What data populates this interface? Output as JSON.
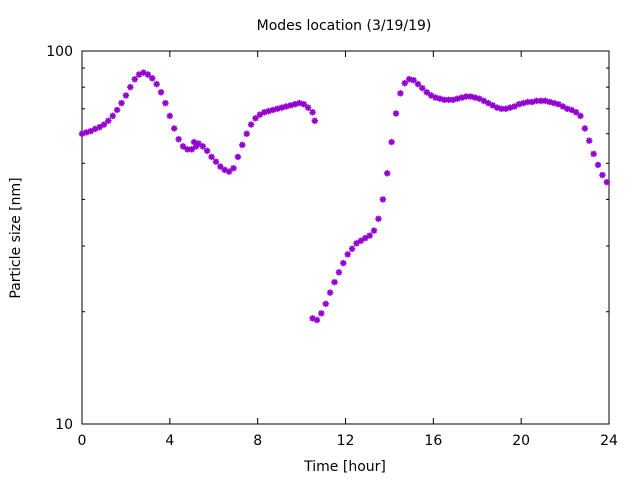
{
  "chart_data": {
    "type": "scatter",
    "title": "Modes location (3/19/19)",
    "xlabel": "Time [hour]",
    "ylabel": "Particle size [nm]",
    "xlim": [
      0,
      24
    ],
    "ylim": [
      10,
      100
    ],
    "yscale": "log",
    "grid": false,
    "x_ticks": [
      "0",
      "4",
      "8",
      "12",
      "16",
      "20",
      "24"
    ],
    "y_ticks": [
      "10",
      "100"
    ],
    "marker_color": "#9400d3",
    "marker": "star",
    "series": [
      {
        "points": [
          [
            0.0,
            60.0
          ],
          [
            0.2,
            60.5
          ],
          [
            0.4,
            61.0
          ],
          [
            0.6,
            61.8
          ],
          [
            0.8,
            62.5
          ],
          [
            1.0,
            63.5
          ],
          [
            1.2,
            65.0
          ],
          [
            1.4,
            67.0
          ],
          [
            1.6,
            69.5
          ],
          [
            1.8,
            72.5
          ],
          [
            2.0,
            76.0
          ],
          [
            2.2,
            80.0
          ],
          [
            2.4,
            84.0
          ],
          [
            2.6,
            86.5
          ],
          [
            2.8,
            87.5
          ],
          [
            3.0,
            86.5
          ],
          [
            3.2,
            84.5
          ],
          [
            3.4,
            81.5
          ],
          [
            3.6,
            77.5
          ],
          [
            3.8,
            72.5
          ],
          [
            4.0,
            67.0
          ],
          [
            4.2,
            62.0
          ],
          [
            4.4,
            58.0
          ],
          [
            4.6,
            55.5
          ],
          [
            4.8,
            54.5
          ],
          [
            5.0,
            54.5
          ],
          [
            5.2,
            55.5
          ],
          [
            5.1,
            57.0
          ],
          [
            5.3,
            56.5
          ],
          [
            5.5,
            55.5
          ],
          [
            5.7,
            54.0
          ],
          [
            5.9,
            52.0
          ],
          [
            6.1,
            50.5
          ],
          [
            6.3,
            49.0
          ],
          [
            6.5,
            48.0
          ],
          [
            6.7,
            47.5
          ],
          [
            6.9,
            48.5
          ],
          [
            7.1,
            52.0
          ],
          [
            7.3,
            56.0
          ],
          [
            7.5,
            60.0
          ],
          [
            7.7,
            63.5
          ],
          [
            7.9,
            66.0
          ],
          [
            8.1,
            67.5
          ],
          [
            8.3,
            68.5
          ],
          [
            8.5,
            69.0
          ],
          [
            8.7,
            69.5
          ],
          [
            8.9,
            70.0
          ],
          [
            9.1,
            70.5
          ],
          [
            9.3,
            71.0
          ],
          [
            9.5,
            71.5
          ],
          [
            9.7,
            72.0
          ],
          [
            9.9,
            72.5
          ],
          [
            10.1,
            72.0
          ],
          [
            10.3,
            70.5
          ],
          [
            10.5,
            68.5
          ],
          [
            10.6,
            65.0
          ],
          [
            10.5,
            19.2
          ],
          [
            10.7,
            19.0
          ],
          [
            10.9,
            19.8
          ],
          [
            11.1,
            21.0
          ],
          [
            11.3,
            22.5
          ],
          [
            11.5,
            24.0
          ],
          [
            11.7,
            25.5
          ],
          [
            11.9,
            27.0
          ],
          [
            12.1,
            28.5
          ],
          [
            12.3,
            29.5
          ],
          [
            12.5,
            30.5
          ],
          [
            12.7,
            31.0
          ],
          [
            12.9,
            31.5
          ],
          [
            13.1,
            32.0
          ],
          [
            13.3,
            33.0
          ],
          [
            13.5,
            35.5
          ],
          [
            13.7,
            40.0
          ],
          [
            13.9,
            47.0
          ],
          [
            14.1,
            57.0
          ],
          [
            14.3,
            68.0
          ],
          [
            14.5,
            77.0
          ],
          [
            14.7,
            82.0
          ],
          [
            14.9,
            84.0
          ],
          [
            15.1,
            83.5
          ],
          [
            15.3,
            81.5
          ],
          [
            15.5,
            79.5
          ],
          [
            15.7,
            77.5
          ],
          [
            15.9,
            76.0
          ],
          [
            16.1,
            75.0
          ],
          [
            16.3,
            74.5
          ],
          [
            16.5,
            74.0
          ],
          [
            16.7,
            74.0
          ],
          [
            16.9,
            74.0
          ],
          [
            17.1,
            74.5
          ],
          [
            17.3,
            75.0
          ],
          [
            17.5,
            75.5
          ],
          [
            17.7,
            75.5
          ],
          [
            17.9,
            75.0
          ],
          [
            18.1,
            74.5
          ],
          [
            18.3,
            73.5
          ],
          [
            18.5,
            72.5
          ],
          [
            18.7,
            71.5
          ],
          [
            18.9,
            70.5
          ],
          [
            19.1,
            70.0
          ],
          [
            19.3,
            70.0
          ],
          [
            19.5,
            70.5
          ],
          [
            19.7,
            71.0
          ],
          [
            19.9,
            72.0
          ],
          [
            20.1,
            72.5
          ],
          [
            20.3,
            73.0
          ],
          [
            20.5,
            73.0
          ],
          [
            20.7,
            73.5
          ],
          [
            20.9,
            73.5
          ],
          [
            21.1,
            73.5
          ],
          [
            21.3,
            73.0
          ],
          [
            21.5,
            72.5
          ],
          [
            21.7,
            72.0
          ],
          [
            21.9,
            71.0
          ],
          [
            22.1,
            70.0
          ],
          [
            22.3,
            69.5
          ],
          [
            22.5,
            68.5
          ],
          [
            22.7,
            67.0
          ],
          [
            22.9,
            62.0
          ],
          [
            23.1,
            57.5
          ],
          [
            23.3,
            53.0
          ],
          [
            23.5,
            49.5
          ],
          [
            23.7,
            46.5
          ],
          [
            23.9,
            44.5
          ]
        ]
      }
    ]
  }
}
